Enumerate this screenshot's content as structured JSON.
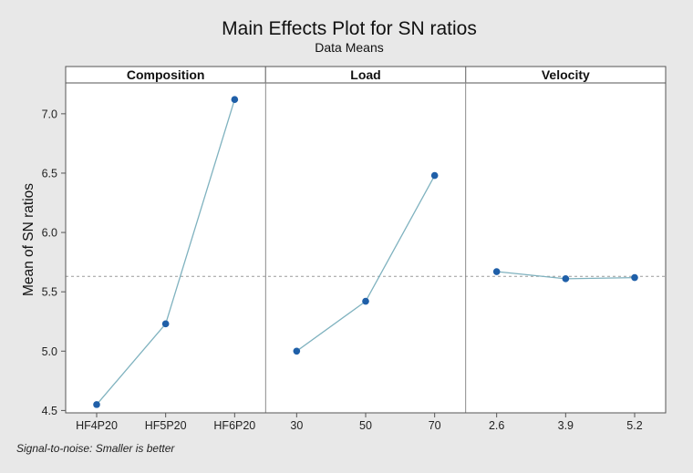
{
  "chart_data": {
    "type": "line",
    "title": "Main Effects Plot for SN ratios",
    "subtitle": "Data Means",
    "ylabel": "Mean of SN ratios",
    "ylim": [
      4.48,
      7.26
    ],
    "yticks": [
      "4.5",
      "5.0",
      "5.5",
      "6.0",
      "6.5",
      "7.0"
    ],
    "reference_line": 5.63,
    "footnote": "Signal-to-noise: Smaller is better",
    "colors": {
      "figure_bg": "#e8e8e8",
      "plot_bg": "#ffffff",
      "line": "#7fb2bf",
      "marker": "#1f5fa8",
      "reference": "#9a9a9a"
    },
    "panels": [
      {
        "name": "Composition",
        "categories": [
          "HF4P20",
          "HF5P20",
          "HF6P20"
        ],
        "values": [
          4.55,
          5.23,
          7.12
        ]
      },
      {
        "name": "Load",
        "categories": [
          "30",
          "50",
          "70"
        ],
        "values": [
          5.0,
          5.42,
          6.48
        ]
      },
      {
        "name": "Velocity",
        "categories": [
          "2.6",
          "3.9",
          "5.2"
        ],
        "values": [
          5.67,
          5.61,
          5.62
        ]
      }
    ]
  }
}
